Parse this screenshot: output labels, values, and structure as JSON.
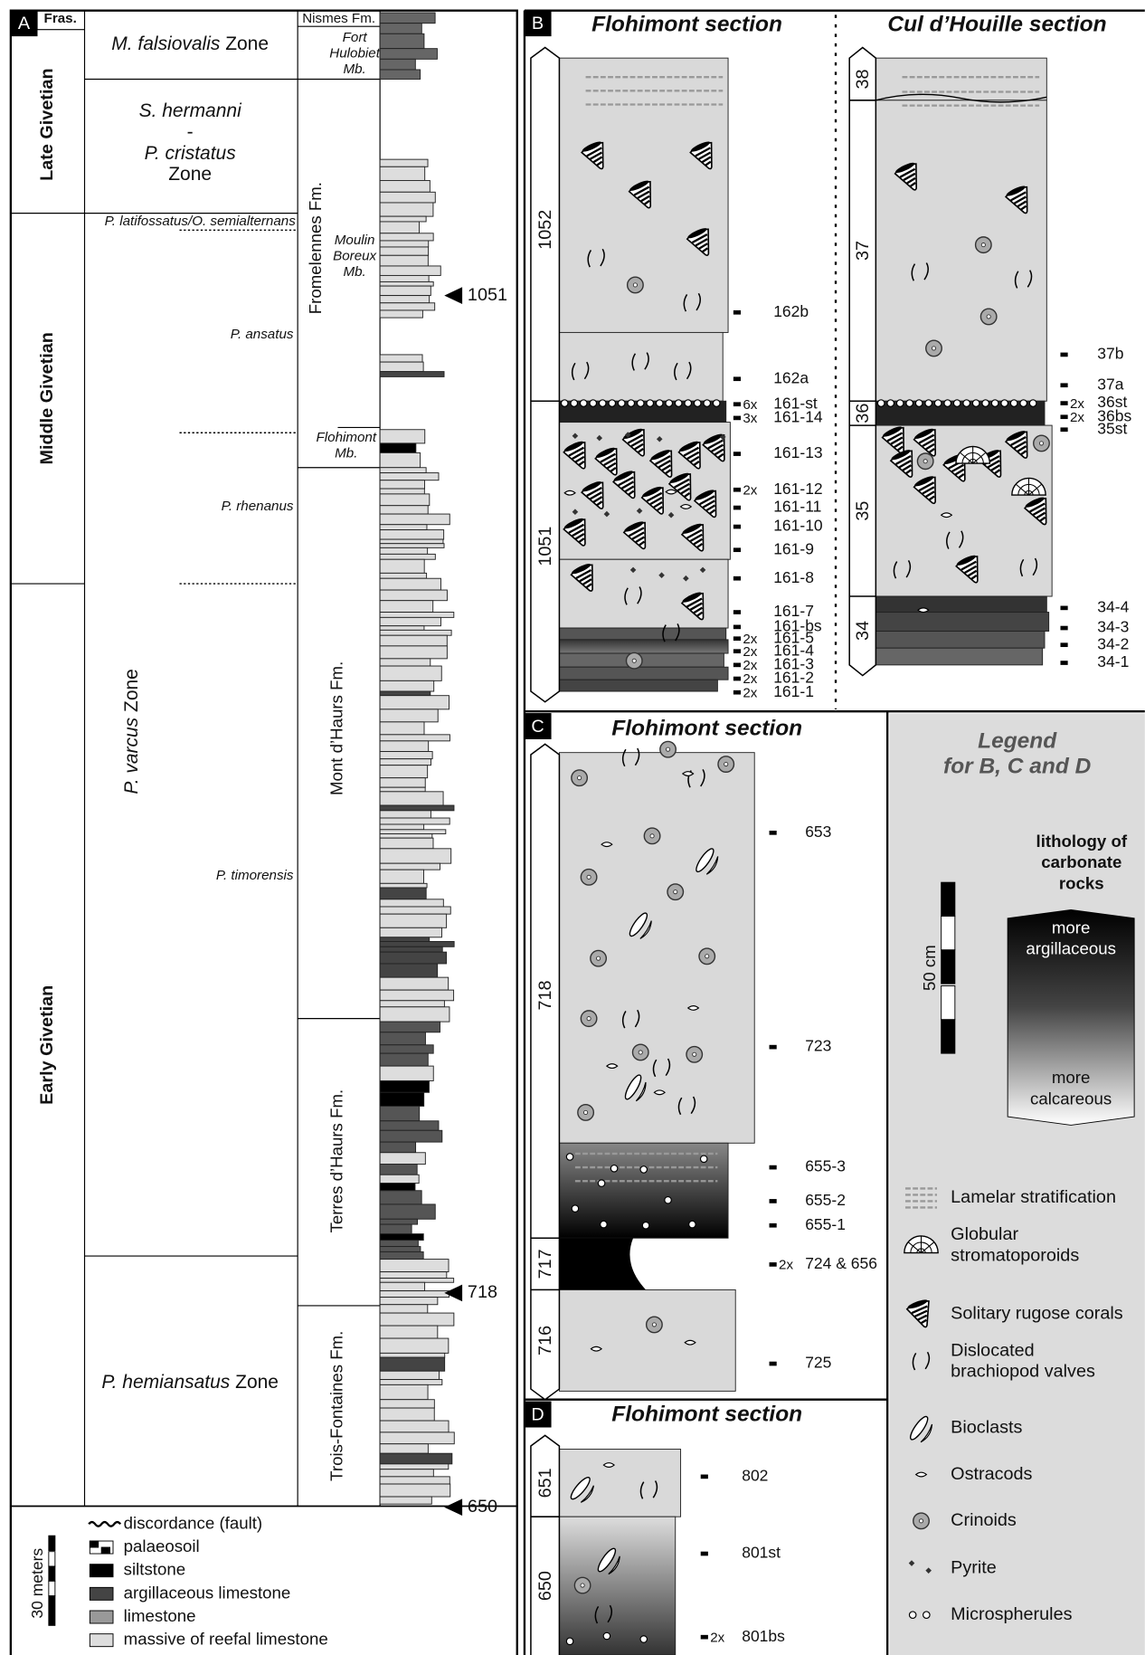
{
  "panel_a": {
    "label": "A",
    "header": "Fras.",
    "stages": [
      "Late Givetian",
      "Middle Givetian",
      "Early Givetian"
    ],
    "zones": [
      [
        "M. falsiovalis",
        "Zone"
      ],
      [
        "S. hermanni",
        "-",
        "P. cristatus",
        "Zone"
      ],
      [
        "P. varcus",
        "Zone"
      ],
      [
        "P. hemiansatus",
        "Zone"
      ]
    ],
    "subzones": [
      "P. latifossatus/O. semialternans",
      "P. ansatus",
      "P. rhenanus",
      "P. timorensis"
    ],
    "formations": [
      "Nismes Fm.",
      "Fromelennes Fm.",
      "Mont d’Haurs Fm.",
      "Terres d’Haurs Fm.",
      "Trois-Fontaines Fm."
    ],
    "members": [
      [
        "Fort",
        "Hulobiet",
        "Mb."
      ],
      [
        "Moulin",
        "Boreux",
        "Mb."
      ],
      [
        "Flohimont",
        "Mb."
      ]
    ],
    "markers": [
      "1051",
      "718",
      "650"
    ],
    "legend": [
      "discordance (fault)",
      "palaeosoil",
      "siltstone",
      "argillaceous limestone",
      "limestone",
      "massive of reefal limestone"
    ],
    "scale": "30 meters"
  },
  "panel_b": {
    "label": "B",
    "sections": [
      {
        "title": "Flohimont section",
        "beds": [
          "1052",
          "1051"
        ],
        "samples": [
          {
            "label": "162b"
          },
          {
            "label": "162a"
          },
          {
            "label": "161-st",
            "count": "6x"
          },
          {
            "label": "161-14",
            "count": "3x"
          },
          {
            "label": "161-13"
          },
          {
            "label": "161-12",
            "count": "2x"
          },
          {
            "label": "161-11"
          },
          {
            "label": "161-10"
          },
          {
            "label": "161-9"
          },
          {
            "label": "161-8"
          },
          {
            "label": "161-7"
          },
          {
            "label": "161-bs"
          },
          {
            "label": "161-5",
            "count": "2x"
          },
          {
            "label": "161-4",
            "count": "2x"
          },
          {
            "label": "161-3",
            "count": "2x"
          },
          {
            "label": "161-2",
            "count": "2x"
          },
          {
            "label": "161-1",
            "count": "2x"
          }
        ]
      },
      {
        "title": "Cul d’Houille section",
        "beds": [
          "38",
          "37",
          "36",
          "35",
          "34"
        ],
        "samples": [
          {
            "label": "37b"
          },
          {
            "label": "37a"
          },
          {
            "label": "36st",
            "count": "2x"
          },
          {
            "label": "36bs",
            "count": "2x"
          },
          {
            "label": "35st"
          },
          {
            "label": "34-4"
          },
          {
            "label": "34-3"
          },
          {
            "label": "34-2"
          },
          {
            "label": "34-1"
          }
        ]
      }
    ]
  },
  "panel_c": {
    "label": "C",
    "title": "Flohimont section",
    "beds": [
      "718",
      "717",
      "716"
    ],
    "samples": [
      {
        "label": "653"
      },
      {
        "label": "723"
      },
      {
        "label": "655-3"
      },
      {
        "label": "655-2"
      },
      {
        "label": "655-1"
      },
      {
        "label": "724 & 656",
        "count": "2x"
      },
      {
        "label": "725"
      }
    ]
  },
  "panel_d": {
    "label": "D",
    "title": "Flohimont section",
    "beds": [
      "651",
      "650"
    ],
    "samples": [
      {
        "label": "802"
      },
      {
        "label": "801st"
      },
      {
        "label": "801bs",
        "count": "2x"
      }
    ]
  },
  "legend": {
    "title": [
      "Legend",
      "for B, C and D"
    ],
    "lithology": [
      "lithology of",
      "carbonate",
      "rocks"
    ],
    "more_argillaceous": [
      "more",
      "argillaceous"
    ],
    "more_calcareous": [
      "more",
      "calcareous"
    ],
    "scale": "50 cm",
    "items": [
      [
        "Lamelar stratification"
      ],
      [
        "Globular",
        "stromatoporoids"
      ],
      [
        "Solitary rugose corals"
      ],
      [
        "Dislocated",
        "brachiopod valves"
      ],
      [
        "Bioclasts"
      ],
      [
        "Ostracods"
      ],
      [
        "Crinoids"
      ],
      [
        "Pyrite"
      ],
      [
        "Microspherules"
      ]
    ]
  }
}
